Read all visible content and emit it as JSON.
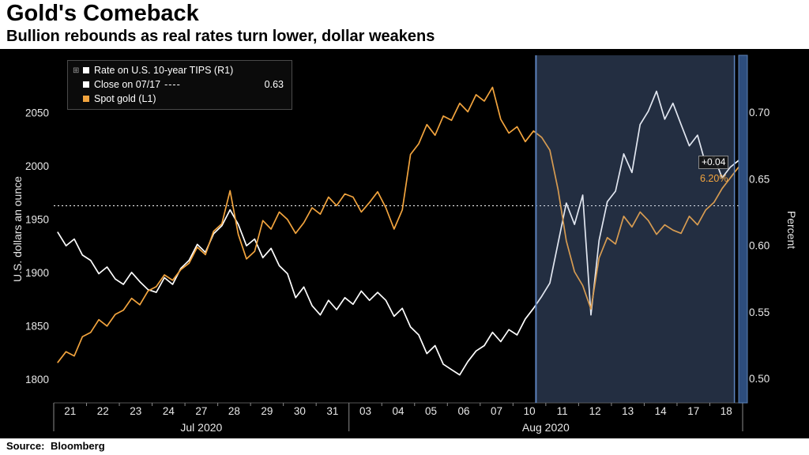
{
  "header": {
    "title": "Gold's Comeback",
    "subtitle": "Bullion rebounds as real rates turn lower, dollar weakens"
  },
  "footer": {
    "source_label": "Source:",
    "source_value": "Bloomberg"
  },
  "chart_data": {
    "type": "line",
    "title": "Gold's Comeback",
    "subtitle": "Bullion rebounds as real rates turn lower, dollar weakens",
    "x_labels": [
      "21",
      "22",
      "23",
      "24",
      "27",
      "28",
      "29",
      "30",
      "31",
      "03",
      "04",
      "05",
      "06",
      "07",
      "10",
      "11",
      "12",
      "13",
      "14",
      "17",
      "18"
    ],
    "month_groups": [
      {
        "label": "Jul 2020",
        "start": 0,
        "end": 9
      },
      {
        "label": "Aug 2020",
        "start": 9,
        "end": 21
      }
    ],
    "left_axis": {
      "label": "U.S. dollars an ounce",
      "ticks": [
        "1800",
        "1850",
        "1900",
        "1950",
        "2000",
        "2050"
      ],
      "tick_values": [
        1800,
        1850,
        1900,
        1950,
        2000,
        2050
      ],
      "range": [
        1778,
        2104
      ]
    },
    "right_axis": {
      "label": "Percent",
      "ticks": [
        "0.50",
        "0.55",
        "0.60",
        "0.65",
        "0.70"
      ],
      "tick_values": [
        0.5,
        0.55,
        0.6,
        0.65,
        0.7
      ],
      "range": [
        0.482,
        0.743
      ]
    },
    "series": [
      {
        "id": "tips",
        "name": "Rate on U.S. 10-year TIPS (R1)",
        "axis": "right",
        "color": "#ffffff",
        "points_per_day": 4,
        "values": [
          0.61,
          0.6,
          0.605,
          0.593,
          0.589,
          0.579,
          0.584,
          0.575,
          0.571,
          0.58,
          0.573,
          0.567,
          0.565,
          0.576,
          0.571,
          0.583,
          0.589,
          0.601,
          0.595,
          0.609,
          0.615,
          0.627,
          0.616,
          0.6,
          0.605,
          0.591,
          0.598,
          0.585,
          0.579,
          0.561,
          0.569,
          0.555,
          0.548,
          0.559,
          0.552,
          0.561,
          0.556,
          0.566,
          0.559,
          0.565,
          0.559,
          0.547,
          0.553,
          0.539,
          0.533,
          0.519,
          0.525,
          0.511,
          0.507,
          0.503,
          0.513,
          0.521,
          0.525,
          0.535,
          0.528,
          0.537,
          0.533,
          0.545,
          0.553,
          0.562,
          0.572,
          0.602,
          0.632,
          0.616,
          0.638,
          0.548,
          0.604,
          0.633,
          0.641,
          0.669,
          0.655,
          0.691,
          0.701,
          0.716,
          0.695,
          0.707,
          0.691,
          0.675,
          0.683,
          0.661,
          0.667,
          0.651,
          0.659,
          0.664
        ]
      },
      {
        "id": "gold",
        "name": "Spot gold (L1)",
        "axis": "left",
        "color": "#f2a43e",
        "points_per_day": 4,
        "values": [
          1816,
          1826,
          1822,
          1840,
          1844,
          1856,
          1850,
          1861,
          1865,
          1876,
          1870,
          1883,
          1887,
          1898,
          1893,
          1903,
          1909,
          1924,
          1917,
          1939,
          1946,
          1977,
          1936,
          1913,
          1920,
          1949,
          1941,
          1957,
          1950,
          1937,
          1947,
          1961,
          1955,
          1971,
          1963,
          1974,
          1971,
          1957,
          1966,
          1976,
          1961,
          1941,
          1959,
          2011,
          2021,
          2039,
          2029,
          2047,
          2043,
          2059,
          2051,
          2067,
          2061,
          2074,
          2044,
          2031,
          2037,
          2023,
          2033,
          2027,
          2015,
          1978,
          1930,
          1901,
          1888,
          1866,
          1914,
          1933,
          1927,
          1953,
          1943,
          1957,
          1949,
          1936,
          1945,
          1940,
          1937,
          1953,
          1945,
          1959,
          1966,
          1979,
          1989,
          1999
        ]
      }
    ],
    "reference_line": {
      "name": "Close on 07/17",
      "axis": "right",
      "value": 0.63,
      "display_value": "0.63",
      "style": "dotted"
    },
    "highlight": {
      "start_day": 14.7,
      "end_day": 20.75,
      "fill": "rgba(110,140,190,0.22)",
      "border_color": "#5d83bd"
    },
    "end_labels": [
      {
        "text": "+0.04",
        "color": "#ffffff",
        "boxed": true
      },
      {
        "text": "6.20%",
        "color": "#f2a43e",
        "boxed": false
      }
    ],
    "legend": [
      {
        "label": "Rate on U.S. 10-year TIPS (R1)",
        "color": "#ffffff",
        "style": "solid"
      },
      {
        "label": "Close on 07/17",
        "color": "#ffffff",
        "style": "dashed",
        "dash_text": "----",
        "value": "0.63"
      },
      {
        "label": "Spot gold (L1)",
        "color": "#f2a43e",
        "style": "solid"
      }
    ]
  }
}
